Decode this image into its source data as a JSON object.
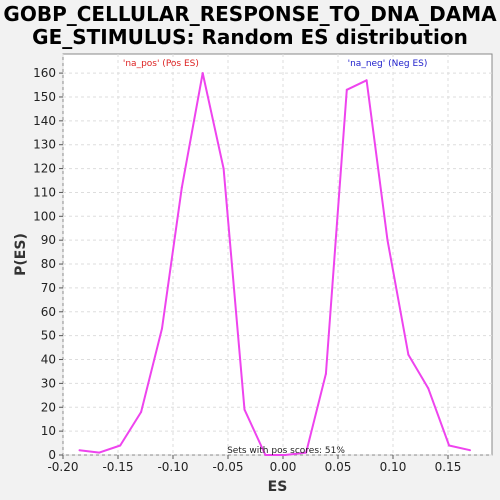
{
  "chart_data": {
    "type": "line",
    "title_line1": "GOBP_CELLULAR_RESPONSE_TO_DNA_DAMA",
    "title_line2": "GE_STIMULUS: Random ES distribution",
    "xlabel": "ES",
    "ylabel": "P(ES)",
    "xlim": [
      -0.2,
      0.19
    ],
    "ylim": [
      0,
      168
    ],
    "x_ticks": [
      -0.2,
      -0.15,
      -0.1,
      -0.05,
      0.0,
      0.05,
      0.1,
      0.15
    ],
    "x_tick_labels": [
      "-0.20",
      "-0.15",
      "-0.10",
      "-0.05",
      "0.00",
      "0.05",
      "0.10",
      "0.15"
    ],
    "y_ticks": [
      0,
      10,
      20,
      30,
      40,
      50,
      60,
      70,
      80,
      90,
      100,
      110,
      120,
      130,
      140,
      150,
      160
    ],
    "y_tick_labels": [
      "0",
      "10",
      "20",
      "30",
      "40",
      "50",
      "60",
      "70",
      "80",
      "90",
      "100",
      "110",
      "120",
      "130",
      "140",
      "150",
      "160"
    ],
    "grid": true,
    "series": [
      {
        "color": "#ee44ee",
        "x": [
          -0.185,
          -0.167,
          -0.148,
          -0.129,
          -0.11,
          -0.092,
          -0.073,
          -0.054,
          -0.035,
          -0.016,
          0.002,
          0.021,
          0.039,
          0.058,
          0.076,
          0.095,
          0.114,
          0.132,
          0.151,
          0.17
        ],
        "y": [
          2,
          1,
          4,
          18,
          53,
          112,
          160,
          120,
          19,
          0,
          0,
          1,
          34,
          153,
          157,
          90,
          42,
          28,
          4,
          2
        ]
      }
    ],
    "annotations": [
      {
        "text": "'na_pos' (Pos ES)",
        "x": -0.111,
        "y": 163,
        "color": "#dd2222"
      },
      {
        "text": "'na_neg' (Neg ES)",
        "x": 0.095,
        "y": 163,
        "color": "#2222cc"
      }
    ],
    "footer_note": "Sets with pos scores: 51%",
    "colors": {
      "background": "#f2f2f2",
      "plot_background": "#ffffff",
      "grid": "#dddddd"
    }
  }
}
